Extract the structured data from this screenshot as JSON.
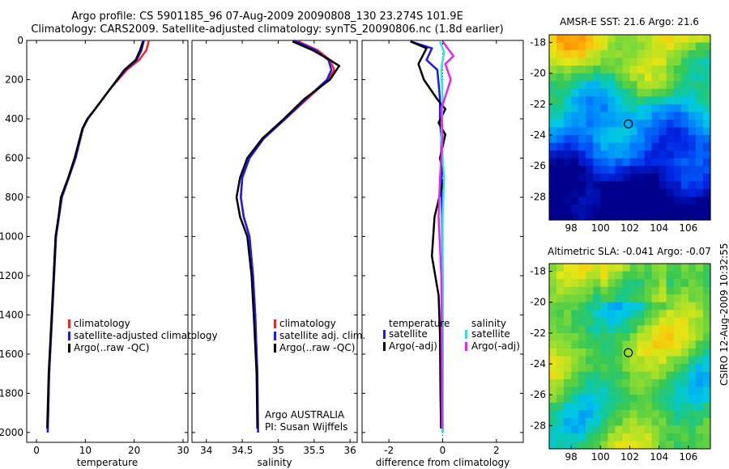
{
  "header": {
    "title_line1": "Argo profile: CS 5901185_96 07-Aug-2009 20090808_130 23.274S 101.9E",
    "title_line2": "Climatology: CARS2009. Satellite-adjusted climatology: synTS_20090806.nc (1.8d earlier)"
  },
  "colors": {
    "climatology": "#ff2020",
    "satellite": "#1a1aff",
    "argo": "#000000",
    "sal_satellite": "#22e8ee",
    "sal_argo": "#ee22ee"
  },
  "chart_data": [
    {
      "type": "line",
      "xlabel": "temperature",
      "ylabel": "",
      "xlim": [
        -2,
        31
      ],
      "ylim": [
        2050,
        0
      ],
      "xticks": [
        0,
        10,
        20,
        30
      ],
      "yticks": [
        0,
        200,
        400,
        600,
        800,
        1000,
        1200,
        1400,
        1600,
        1800,
        2000
      ],
      "legend": [
        "climatology",
        "satellite-adjusted climatology",
        "Argo(..raw -QC)"
      ],
      "series": [
        {
          "name": "climatology",
          "color": "#ff2020",
          "x": [
            23.0,
            22.5,
            21.0,
            18.5,
            15.0,
            12.0,
            10.5,
            9.5,
            8.0,
            6.6,
            5.2,
            4.6,
            4.0,
            3.6,
            3.2,
            2.6,
            2.3
          ],
          "y": [
            0,
            50,
            100,
            150,
            250,
            350,
            400,
            450,
            600,
            700,
            800,
            900,
            1000,
            1200,
            1400,
            1700,
            2000
          ]
        },
        {
          "name": "satellite-adjusted climatology",
          "color": "#1a1aff",
          "x": [
            22.0,
            21.5,
            20.5,
            18.2,
            15.0,
            12.0,
            10.5,
            9.5,
            8.0,
            6.6,
            5.2,
            4.6,
            4.0,
            3.6,
            3.2,
            2.6,
            2.3
          ],
          "y": [
            0,
            50,
            100,
            150,
            250,
            350,
            400,
            450,
            600,
            700,
            800,
            900,
            1000,
            1200,
            1400,
            1700,
            2000
          ]
        },
        {
          "name": "Argo(..raw -QC)",
          "color": "#000000",
          "x": [
            21.8,
            21.2,
            20.3,
            18.0,
            15.0,
            12.0,
            10.4,
            9.4,
            7.8,
            6.5,
            5.0,
            4.5,
            3.9,
            3.5,
            3.1,
            2.5,
            2.2
          ],
          "y": [
            5,
            50,
            100,
            150,
            250,
            350,
            400,
            450,
            600,
            700,
            800,
            900,
            1000,
            1200,
            1400,
            1700,
            1980
          ]
        }
      ]
    },
    {
      "type": "line",
      "xlabel": "salinity",
      "ylabel": "",
      "xlim": [
        33.8,
        36.1
      ],
      "ylim": [
        2050,
        0
      ],
      "xticks": [
        34,
        34.5,
        35,
        35.5,
        36
      ],
      "legend": [
        "climatology",
        "satellite adj. clim.",
        "Argo(..raw -QC)"
      ],
      "annotations": [
        "Argo AUSTRALIA",
        "PI: Susan Wijffels"
      ],
      "series": [
        {
          "name": "climatology",
          "color": "#ff2020",
          "x": [
            35.25,
            35.55,
            35.72,
            35.78,
            35.7,
            35.4,
            35.1,
            34.8,
            34.6,
            34.5,
            34.48,
            34.52,
            34.6,
            34.65,
            34.68,
            34.71,
            34.72
          ],
          "y": [
            0,
            50,
            100,
            150,
            200,
            300,
            400,
            500,
            600,
            700,
            800,
            900,
            1000,
            1200,
            1400,
            1700,
            2000
          ]
        },
        {
          "name": "satellite adj. clim.",
          "color": "#1a1aff",
          "x": [
            35.22,
            35.52,
            35.7,
            35.74,
            35.68,
            35.38,
            35.1,
            34.8,
            34.6,
            34.5,
            34.48,
            34.52,
            34.6,
            34.65,
            34.68,
            34.71,
            34.72
          ],
          "y": [
            0,
            50,
            100,
            150,
            200,
            300,
            400,
            500,
            600,
            700,
            800,
            900,
            1000,
            1200,
            1400,
            1700,
            2000
          ]
        },
        {
          "name": "Argo(..raw -QC)",
          "color": "#000000",
          "x": [
            35.2,
            35.48,
            35.72,
            35.85,
            35.72,
            35.36,
            35.08,
            34.78,
            34.57,
            34.47,
            34.42,
            34.47,
            34.57,
            34.63,
            34.66,
            34.7,
            34.71
          ],
          "y": [
            5,
            50,
            100,
            130,
            200,
            300,
            400,
            500,
            600,
            700,
            800,
            900,
            1000,
            1200,
            1400,
            1700,
            1980
          ]
        }
      ]
    },
    {
      "type": "line",
      "xlabel": "difference from climatology",
      "ylabel": "",
      "xlim": [
        -3,
        3
      ],
      "ylim": [
        2050,
        0
      ],
      "xticks": [
        -2,
        0,
        2
      ],
      "legend_headers": [
        "temperature",
        "salinity"
      ],
      "legend": [
        "satellite",
        "Argo(-adj)",
        "satellite",
        "Argo(-adj)"
      ],
      "series": [
        {
          "name": "temperature satellite",
          "color": "#1a1aff",
          "x": [
            -1.2,
            -0.4,
            -0.6,
            -0.2,
            -0.15,
            -0.1,
            -0.1,
            -0.05,
            -0.05,
            -0.02,
            0.0,
            0.0,
            0.0
          ],
          "y": [
            5,
            40,
            100,
            150,
            220,
            300,
            400,
            500,
            700,
            900,
            1200,
            1600,
            2000
          ]
        },
        {
          "name": "temperature Argo(-adj)",
          "color": "#000000",
          "x": [
            -1.2,
            -0.6,
            -0.9,
            -0.7,
            -0.2,
            0.1,
            -0.15,
            0.1,
            -0.1,
            0.05,
            -0.3,
            -0.4,
            -0.15,
            -0.1,
            -0.08,
            -0.06
          ],
          "y": [
            5,
            40,
            120,
            200,
            300,
            350,
            420,
            480,
            600,
            700,
            900,
            1100,
            1300,
            1500,
            1800,
            1980
          ]
        },
        {
          "name": "salinity satellite",
          "color": "#22e8ee",
          "x": [
            -0.1,
            0.05,
            -0.05,
            0.0,
            -0.05,
            0.05,
            0.0,
            0.0,
            0.0,
            0.0
          ],
          "y": [
            5,
            60,
            150,
            300,
            500,
            700,
            900,
            1200,
            1600,
            2000
          ]
        },
        {
          "name": "salinity Argo(-adj)",
          "color": "#ee22ee",
          "x": [
            0.0,
            0.4,
            0.1,
            0.3,
            -0.05,
            0.0,
            -0.1,
            -0.15,
            -0.05,
            -0.03,
            -0.02
          ],
          "y": [
            5,
            80,
            120,
            200,
            350,
            500,
            700,
            900,
            1200,
            1600,
            1980
          ]
        }
      ]
    },
    {
      "type": "heatmap",
      "title": "AMSR-E SST: 21.6 Argo: 21.6",
      "xticks": [
        98,
        100,
        102,
        104,
        106
      ],
      "yticks": [
        -18,
        -20,
        -22,
        -24,
        -26,
        -28
      ],
      "xlim": [
        96.5,
        107.5
      ],
      "ylim": [
        -29.5,
        -17.5
      ],
      "marker": {
        "lon": 101.9,
        "lat": -23.274
      }
    },
    {
      "type": "heatmap",
      "title": "Altimetric SLA: -0.041 Argo: -0.07",
      "xticks": [
        98,
        100,
        102,
        104,
        106
      ],
      "yticks": [
        -18,
        -20,
        -22,
        -24,
        -26,
        -28
      ],
      "xlim": [
        96.5,
        107.5
      ],
      "ylim": [
        -29.5,
        -17.5
      ],
      "marker": {
        "lon": 101.9,
        "lat": -23.274
      }
    }
  ],
  "footer": {
    "credit": "CSIRO 12-Aug-2009 10:32:55"
  }
}
